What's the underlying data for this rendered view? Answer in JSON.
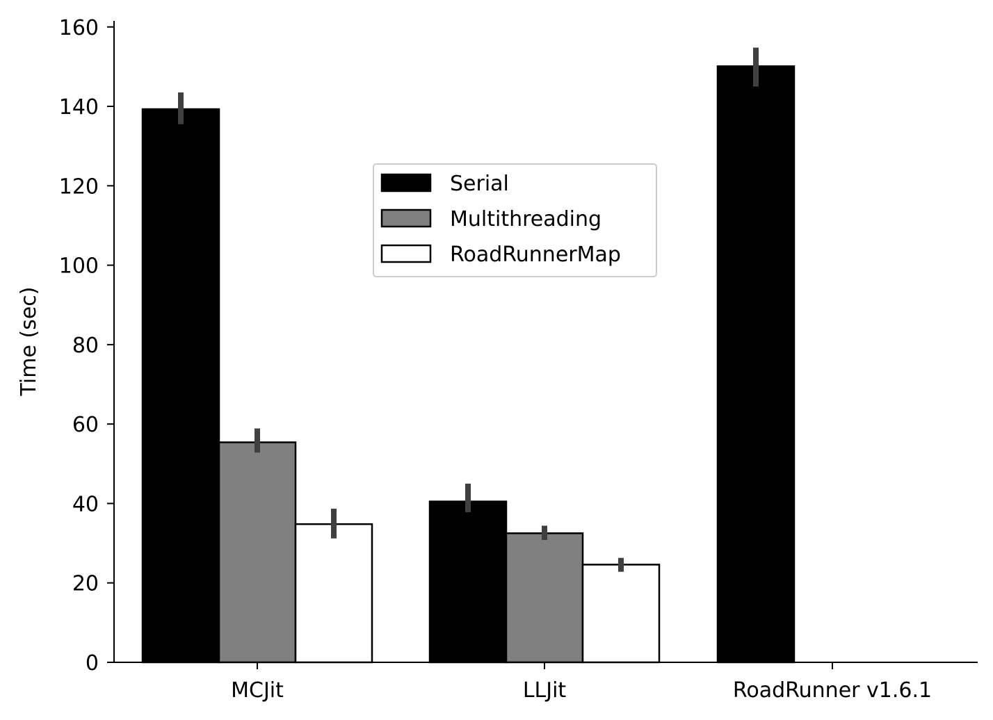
{
  "chart_data": {
    "type": "bar",
    "categories": [
      "MCJit",
      "LLJit",
      "RoadRunner v1.6.1"
    ],
    "series": [
      {
        "name": "Serial",
        "color": "#000000",
        "values": [
          139.3,
          40.5,
          150.1
        ],
        "err_low": [
          135.5,
          37.8,
          145.0
        ],
        "err_high": [
          143.5,
          45.0,
          154.8
        ]
      },
      {
        "name": "Multithreading",
        "color": "#808080",
        "values": [
          55.4,
          32.5,
          null
        ],
        "err_low": [
          52.8,
          30.8,
          null
        ],
        "err_high": [
          58.9,
          34.4,
          null
        ]
      },
      {
        "name": "RoadRunnerMap",
        "color": "#ffffff",
        "values": [
          34.8,
          24.6,
          null
        ],
        "err_low": [
          31.2,
          22.8,
          null
        ],
        "err_high": [
          38.7,
          26.3,
          null
        ]
      }
    ],
    "ylabel": "Time (sec)",
    "yticks": [
      0,
      20,
      40,
      60,
      80,
      100,
      120,
      140,
      160
    ],
    "ylim": [
      0,
      161.5
    ],
    "legend_placement": "upper-center",
    "grid": false
  }
}
